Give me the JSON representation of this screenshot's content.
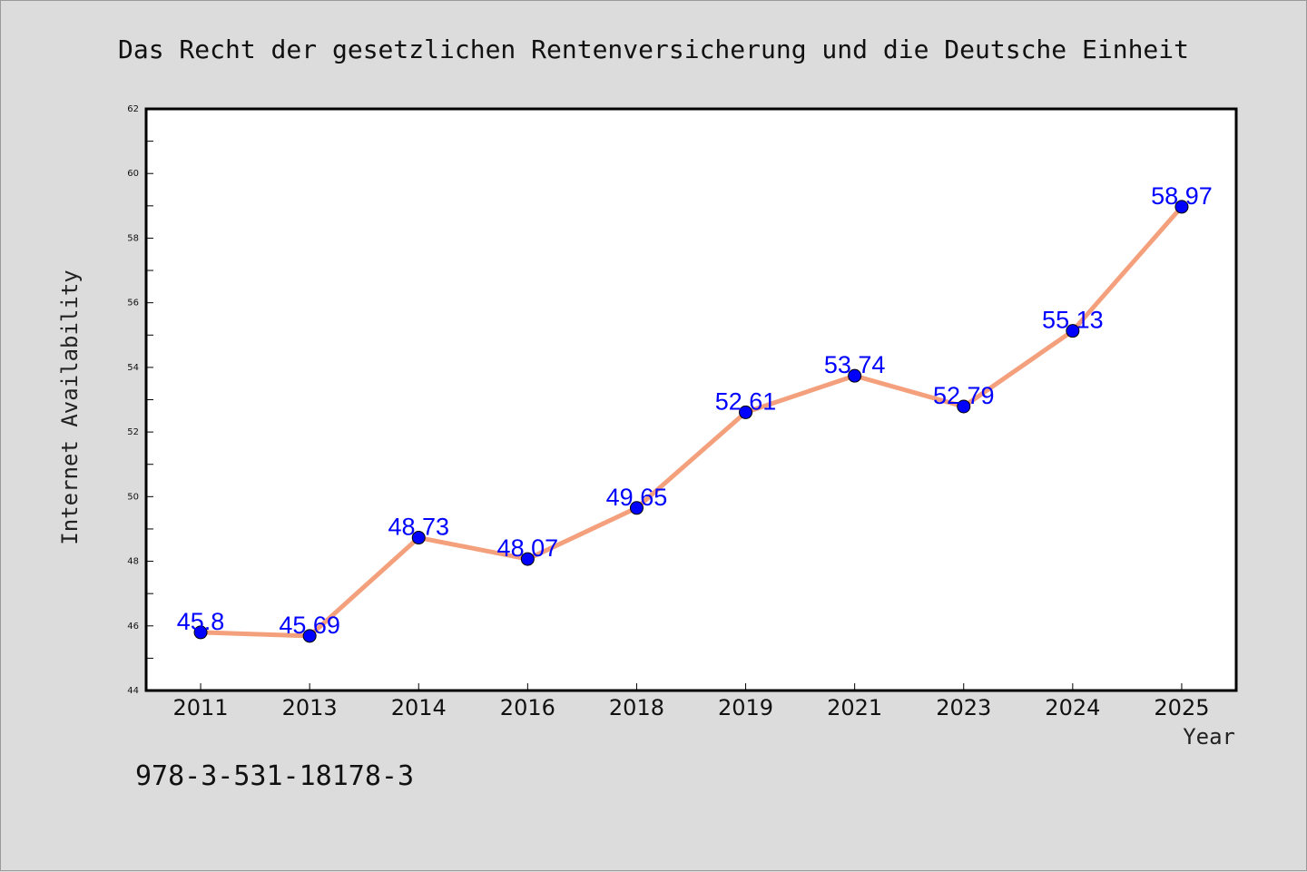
{
  "figure": {
    "isbn_text": "978-3-531-18178-3"
  },
  "colors": {
    "background": "#dcdcdc",
    "plot_background": "#ffffff",
    "line": "#f4a07c",
    "marker": "#0000ff",
    "data_label": "#0000ff"
  },
  "chart_data": {
    "type": "line",
    "title": "Das Recht der gesetzlichen Rentenversicherung und die Deutsche Einheit",
    "xlabel": "Year",
    "ylabel": "Internet Availability",
    "categories": [
      "2011",
      "2013",
      "2014",
      "2016",
      "2018",
      "2019",
      "2021",
      "2023",
      "2024",
      "2025"
    ],
    "series": [
      {
        "values": [
          45.8,
          45.69,
          48.73,
          48.07,
          49.65,
          52.61,
          53.74,
          52.79,
          55.13,
          58.97
        ],
        "data_labels": [
          "45.8",
          "45.69",
          "48.73",
          "48.07",
          "49.65",
          "52.61",
          "53.74",
          "52.79",
          "55.13",
          "58.97"
        ]
      }
    ],
    "ylim": [
      44,
      62
    ],
    "yticks": [
      "44",
      "46",
      "48",
      "50",
      "52",
      "54",
      "56",
      "58",
      "60",
      "62"
    ],
    "grid": false,
    "legend": "none"
  }
}
